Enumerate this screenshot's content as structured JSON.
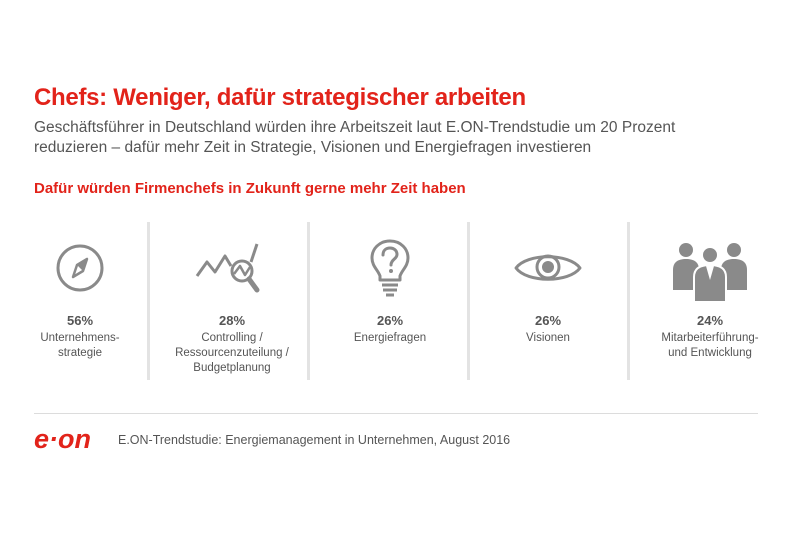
{
  "title": "Chefs: Weniger, dafür strategischer arbeiten",
  "subtitle": {
    "line1": "Geschäftsführer in Deutschland würden ihre Arbeitszeit laut E.ON-Trendstudie um 20 Prozent",
    "line2": "reduzieren – dafür mehr Zeit in Strategie, Visionen und Energiefragen investieren"
  },
  "section_heading": "Dafür würden Firmenchefs in Zukunft gerne mehr Zeit haben",
  "items": [
    {
      "icon": "compass-icon",
      "percent": "56%",
      "label_lines": [
        "Unternehmens-",
        "strategie"
      ]
    },
    {
      "icon": "chart-magnifier-icon",
      "percent": "28%",
      "label_lines": [
        "Controlling /",
        "Ressourcenzuteilung /",
        "Budgetplanung"
      ]
    },
    {
      "icon": "lightbulb-question-icon",
      "percent": "26%",
      "label_lines": [
        "Energiefragen"
      ]
    },
    {
      "icon": "eye-icon",
      "percent": "26%",
      "label_lines": [
        "Visionen"
      ]
    },
    {
      "icon": "people-group-icon",
      "percent": "24%",
      "label_lines": [
        "Mitarbeiterführung-",
        "und Entwicklung"
      ]
    }
  ],
  "logo_text": "e·on",
  "source": "E.ON-Trendstudie: Energiemanagement in Unternehmen, August 2016",
  "colors": {
    "accent": "#e2231a",
    "text": "#555555",
    "icon": "#8a8a8a",
    "divider": "#e3e3e3"
  }
}
